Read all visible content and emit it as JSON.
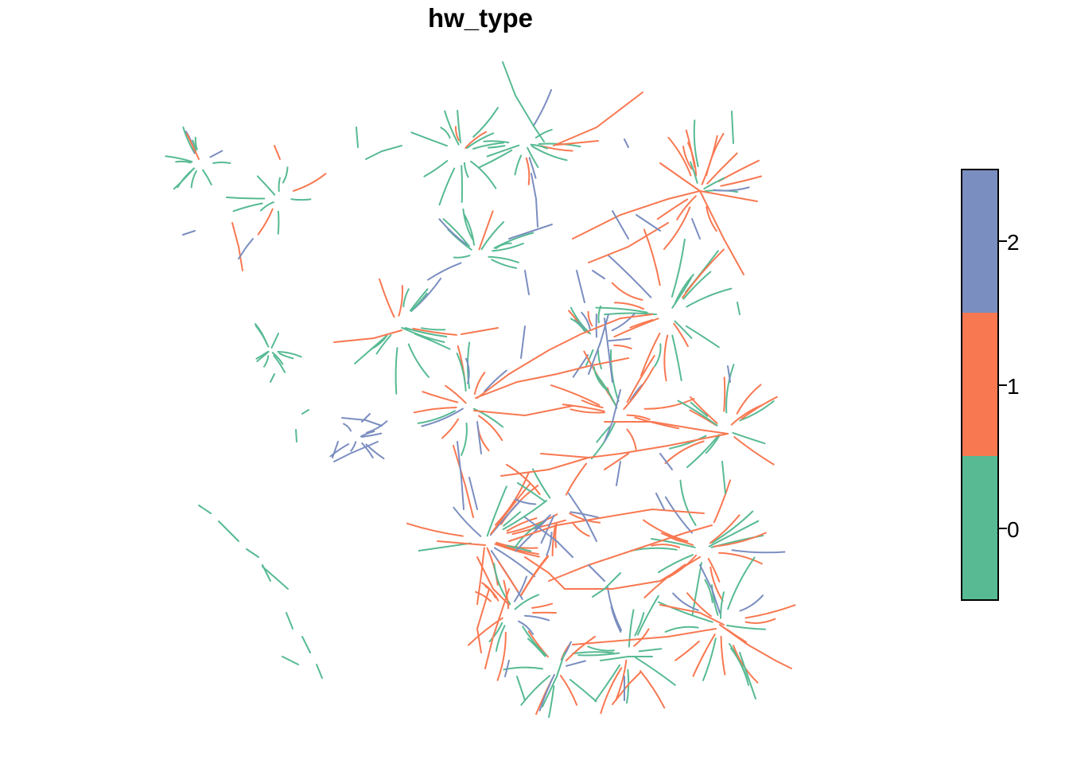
{
  "title": "hw_type",
  "legend": {
    "classes": [
      {
        "label": "0",
        "color": "#57BA93"
      },
      {
        "label": "1",
        "color": "#F87851"
      },
      {
        "label": "2",
        "color": "#7B8EC0"
      }
    ]
  },
  "map": {
    "feature_type": "road-segments",
    "attribute": "hw_type",
    "palette": {
      "0": "#57BA93",
      "1": "#F87851",
      "2": "#7B8EC0"
    }
  }
}
